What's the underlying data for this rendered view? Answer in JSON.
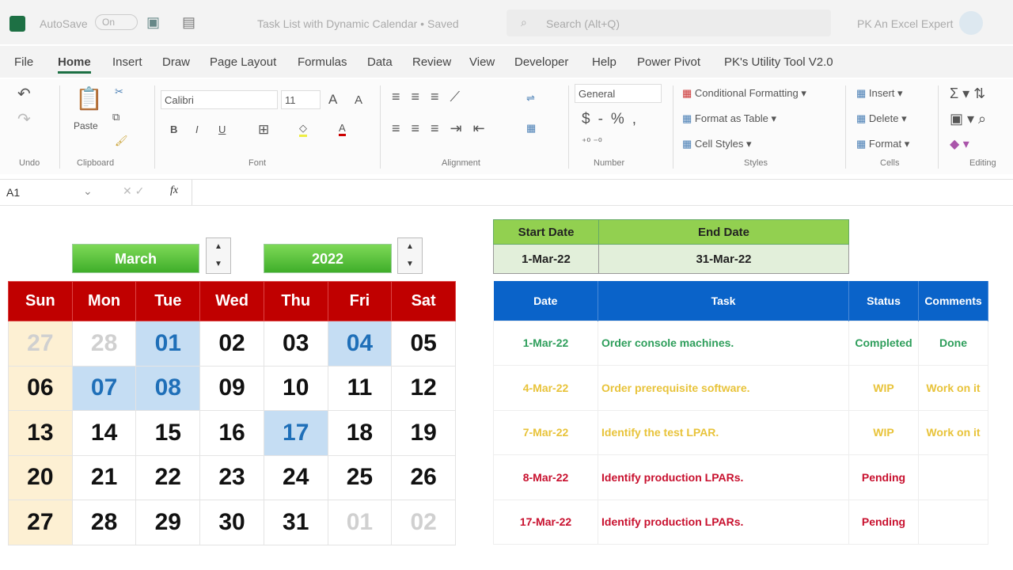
{
  "titlebar": {
    "autosave": "AutoSave",
    "autosave_state": "On",
    "doc_title": "Task List with Dynamic Calendar • Saved",
    "search_placeholder": "Search (Alt+Q)",
    "user": "PK An Excel Expert"
  },
  "tabs": [
    "File",
    "Home",
    "Insert",
    "Draw",
    "Page Layout",
    "Formulas",
    "Data",
    "Review",
    "View",
    "Developer",
    "Help",
    "Power Pivot",
    "PK's Utility Tool V2.0"
  ],
  "ribbon": {
    "groups": [
      "Undo",
      "Clipboard",
      "Font",
      "Alignment",
      "Number",
      "Styles",
      "Cells",
      "Editing"
    ],
    "paste": "Paste",
    "font_name": "Calibri",
    "font_size": "11",
    "number_format": "General",
    "conditional_formatting": "Conditional Formatting",
    "format_as_table": "Format as Table",
    "cell_styles": "Cell Styles",
    "insert": "Insert",
    "delete": "Delete",
    "format": "Format"
  },
  "formula_bar": {
    "name_box": "A1",
    "fx": "fx",
    "value": ""
  },
  "calendar": {
    "month": "March",
    "year": "2022",
    "weekdays": [
      "Sun",
      "Mon",
      "Tue",
      "Wed",
      "Thu",
      "Fri",
      "Sat"
    ],
    "weeks": [
      [
        "27",
        "28",
        "01",
        "02",
        "03",
        "04",
        "05"
      ],
      [
        "06",
        "07",
        "08",
        "09",
        "10",
        "11",
        "12"
      ],
      [
        "13",
        "14",
        "15",
        "16",
        "17",
        "18",
        "19"
      ],
      [
        "20",
        "21",
        "22",
        "23",
        "24",
        "25",
        "26"
      ],
      [
        "27",
        "28",
        "29",
        "30",
        "31",
        "01",
        "02"
      ]
    ],
    "highlighted": [
      "01",
      "04",
      "07",
      "08",
      "17"
    ],
    "colors": {
      "header": "#c00000",
      "highlight": "#c5ddf3",
      "sunday": "#fdf0d3"
    }
  },
  "date_range": {
    "start_label": "Start Date",
    "end_label": "End Date",
    "start": "1-Mar-22",
    "end": "31-Mar-22"
  },
  "tasks": {
    "headers": [
      "Date",
      "Task",
      "Status",
      "Comments"
    ],
    "rows": [
      {
        "date": "1-Mar-22",
        "task": "Order console machines.",
        "status": "Completed",
        "comments": "Done",
        "color": "#2e9e5b"
      },
      {
        "date": "4-Mar-22",
        "task": "Order prerequisite software.",
        "status": "WIP",
        "comments": "Work on it",
        "color": "#e8c33a"
      },
      {
        "date": "7-Mar-22",
        "task": "Identify the test LPAR.",
        "status": "WIP",
        "comments": "Work on it",
        "color": "#e8c33a"
      },
      {
        "date": "8-Mar-22",
        "task": "Identify production LPARs.",
        "status": "Pending",
        "comments": "",
        "color": "#c8102e"
      },
      {
        "date": "17-Mar-22",
        "task": "Identify production LPARs.",
        "status": "Pending",
        "comments": "",
        "color": "#c8102e"
      }
    ]
  }
}
